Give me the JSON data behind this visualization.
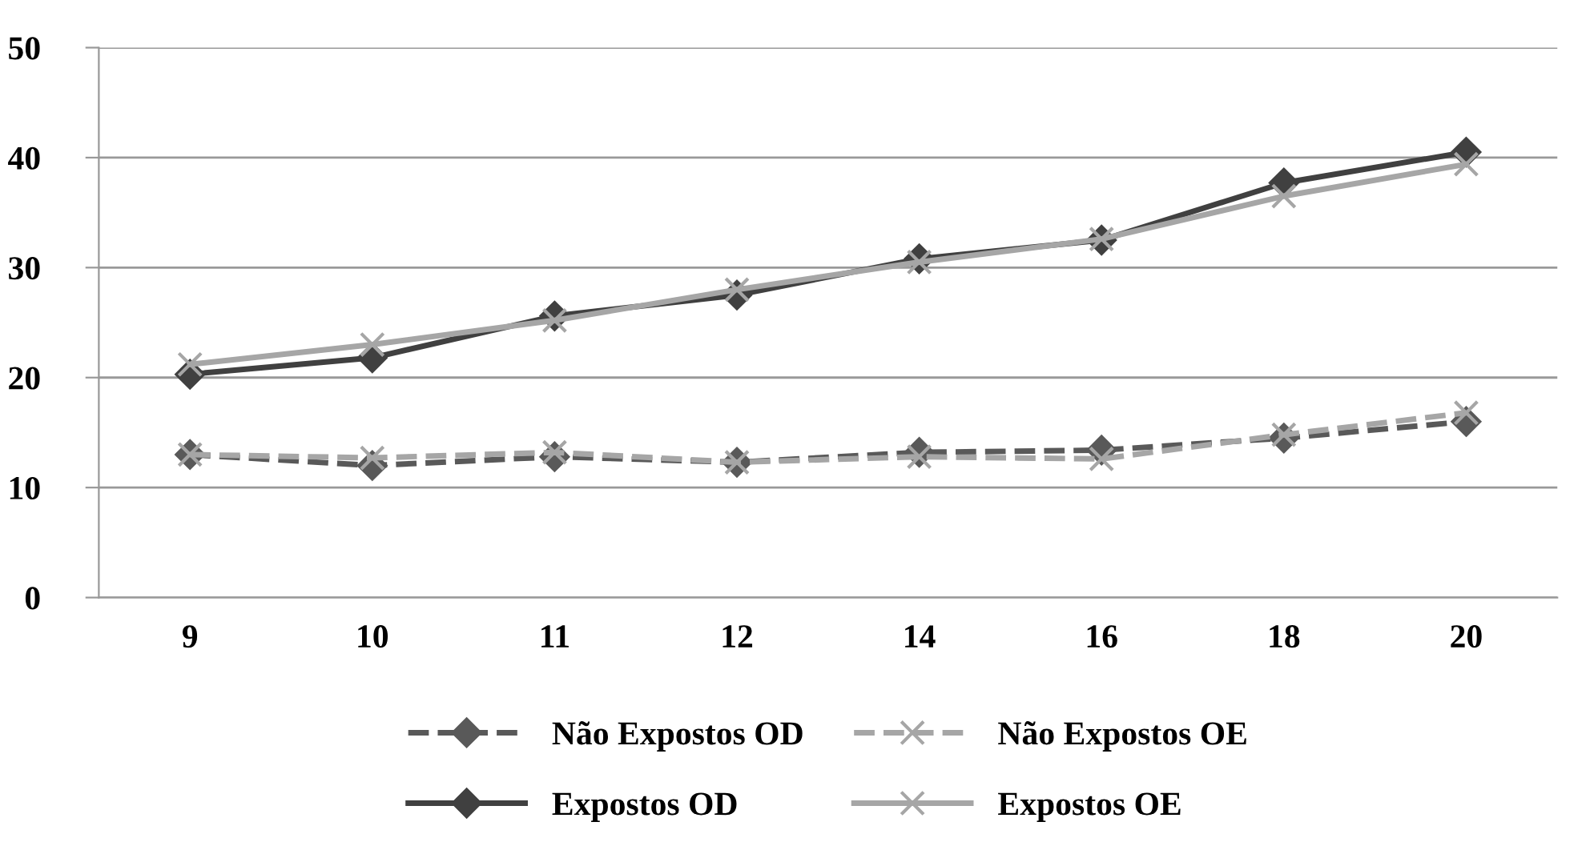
{
  "chart_data": {
    "type": "line",
    "categories": [
      "9",
      "10",
      "11",
      "12",
      "14",
      "16",
      "18",
      "20"
    ],
    "ylim": [
      0,
      50
    ],
    "yticks": [
      0,
      10,
      20,
      30,
      40,
      50
    ],
    "grid": "y",
    "legend": "bottom",
    "series": [
      {
        "name": "Não Expostos OD",
        "color": "#595959",
        "marker": "diamond",
        "line_style": "dashed",
        "values": [
          13.0,
          12.0,
          12.8,
          12.3,
          13.2,
          13.4,
          14.5,
          16.0
        ]
      },
      {
        "name": "Não Expostos OE",
        "color": "#a6a6a6",
        "marker": "cross",
        "line_style": "dashed",
        "values": [
          13.0,
          12.7,
          13.2,
          12.3,
          12.8,
          12.6,
          14.8,
          16.8
        ]
      },
      {
        "name": "Expostos OD",
        "color": "#404040",
        "marker": "diamond",
        "line_style": "solid",
        "values": [
          20.3,
          21.8,
          25.6,
          27.5,
          30.8,
          32.5,
          37.7,
          40.5
        ]
      },
      {
        "name": "Expostos OE",
        "color": "#a6a6a6",
        "marker": "cross",
        "line_style": "solid",
        "values": [
          21.2,
          23.0,
          25.2,
          28.0,
          30.5,
          32.6,
          36.5,
          39.4
        ]
      }
    ]
  }
}
